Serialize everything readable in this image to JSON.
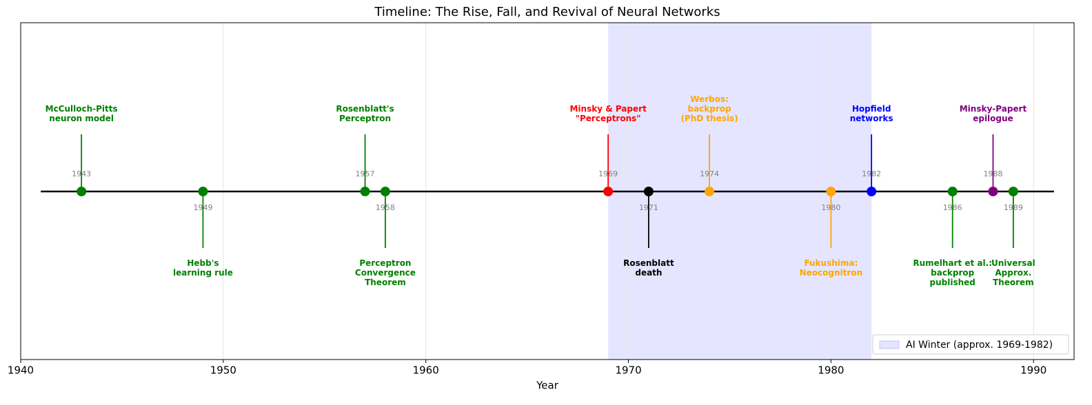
{
  "chart_data": {
    "type": "timeline",
    "title": "Timeline: The Rise, Fall, and Revival of Neural Networks",
    "xlabel": "Year",
    "xlim": [
      1940,
      1992
    ],
    "xticks": [
      1940,
      1950,
      1960,
      1970,
      1980,
      1990
    ],
    "grid": true,
    "x": [
      1943,
      1949,
      1957,
      1958,
      1969,
      1971,
      1974,
      1980,
      1982,
      1986,
      1988,
      1989
    ],
    "labels": [
      "McCulloch-Pitts\nneuron model",
      "Hebb's\nlearning rule",
      "Rosenblatt's\nPerceptron",
      "Perceptron\nConvergence\nTheorem",
      "Minsky & Papert\n\"Perceptrons\"",
      "Rosenblatt\ndeath",
      "Werbos:\nbackprop\n(PhD thesis)",
      "Fukushima:\nNeocognitron",
      "Hopfield\nnetworks",
      "Rumelhart et al.:\nbackprop\npublished",
      "Minsky-Papert\nepilogue",
      "Universal\nApprox.\nTheorem"
    ],
    "colors": [
      "#008000",
      "#008000",
      "#008000",
      "#008000",
      "#ff0000",
      "#000000",
      "#ffa500",
      "#ffa500",
      "#0000ff",
      "#008000",
      "#800080",
      "#008000"
    ],
    "side": [
      "above",
      "below",
      "above",
      "below",
      "above",
      "below",
      "above",
      "below",
      "above",
      "below",
      "above",
      "below"
    ],
    "spans": [
      {
        "start": 1969,
        "end": 1982,
        "label": "AI Winter (approx. 1969-1982)",
        "color": "#0000ff",
        "alpha": 0.1
      }
    ],
    "legend": "lower right"
  }
}
